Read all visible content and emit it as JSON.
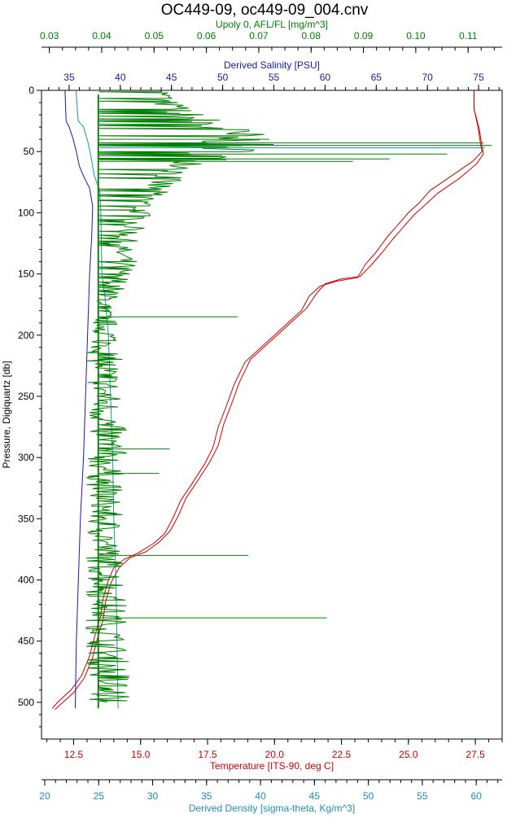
{
  "chart_data": {
    "type": "line",
    "title": "OC449-09, oc449-09_004.cnv",
    "colors": {
      "pressure": "#000000",
      "fluorescence": "#008000",
      "salinity": "#1a1aa6",
      "temperature": "#cc0000",
      "density": "#1f8fb0"
    },
    "axes": {
      "pressure": {
        "label": "Pressure, Digiquartz [db]",
        "position": "left",
        "range": [
          0,
          530
        ],
        "inverted": true,
        "ticks": [
          0,
          50,
          100,
          150,
          200,
          250,
          300,
          350,
          400,
          450,
          500
        ],
        "tick_labels": [
          "0",
          "50",
          "100",
          "150",
          "200",
          "250",
          "300",
          "350",
          "400",
          "450",
          "500"
        ]
      },
      "fluorescence": {
        "label": "Upoly 0, AFL/FL [mg/m^3]",
        "position": "top",
        "range": [
          0.0285,
          0.1165
        ],
        "ticks": [
          0.03,
          0.04,
          0.05,
          0.06,
          0.07,
          0.08,
          0.09,
          0.1,
          0.11
        ],
        "tick_labels": [
          "0.03",
          "0.04",
          "0.05",
          "0.06",
          "0.07",
          "0.08",
          "0.09",
          "0.10",
          "0.11"
        ]
      },
      "salinity": {
        "label": "Derived Salinity [PSU]",
        "position": "top",
        "range": [
          32.3,
          77.3
        ],
        "ticks": [
          35,
          40,
          45,
          50,
          55,
          60,
          65,
          70,
          75
        ],
        "tick_labels": [
          "35",
          "40",
          "45",
          "50",
          "55",
          "60",
          "65",
          "70",
          "75"
        ]
      },
      "temperature": {
        "label": "Temperature [ITS-90, deg C]",
        "position": "bottom",
        "range": [
          11.3,
          28.5
        ],
        "ticks": [
          12.5,
          15.0,
          17.5,
          20.0,
          22.5,
          25.0,
          27.5
        ],
        "tick_labels": [
          "12.5",
          "15.0",
          "17.5",
          "20.0",
          "22.5",
          "25.0",
          "27.5"
        ]
      },
      "density": {
        "label": "Derived Density [sigma-theta, Kg/m^3]",
        "position": "bottom",
        "range": [
          19.7,
          62.4
        ],
        "ticks": [
          20,
          25,
          30,
          35,
          40,
          45,
          50,
          55,
          60
        ],
        "tick_labels": [
          "20",
          "25",
          "30",
          "35",
          "40",
          "45",
          "50",
          "55",
          "60"
        ]
      }
    },
    "series": [
      {
        "key": "temperature",
        "profiles": [
          [
            [
              27.45,
              0
            ],
            [
              27.45,
              15
            ],
            [
              27.6,
              30
            ],
            [
              27.7,
              45
            ],
            [
              27.75,
              50
            ],
            [
              27.4,
              58
            ],
            [
              26.6,
              70
            ],
            [
              25.8,
              82
            ],
            [
              25.4,
              92
            ],
            [
              25.0,
              100
            ],
            [
              24.6,
              110
            ],
            [
              24.2,
              120
            ],
            [
              23.8,
              132
            ],
            [
              23.4,
              142
            ],
            [
              23.1,
              153
            ],
            [
              22.3,
              156
            ],
            [
              21.7,
              160
            ],
            [
              21.3,
              168
            ],
            [
              21.0,
              180
            ],
            [
              20.5,
              190
            ],
            [
              20.0,
              200
            ],
            [
              19.4,
              212
            ],
            [
              18.9,
              222
            ],
            [
              18.5,
              240
            ],
            [
              18.2,
              258
            ],
            [
              17.9,
              275
            ],
            [
              17.7,
              292
            ],
            [
              17.4,
              305
            ],
            [
              16.9,
              322
            ],
            [
              16.5,
              335
            ],
            [
              16.2,
              350
            ],
            [
              15.9,
              362
            ],
            [
              15.5,
              370
            ],
            [
              14.9,
              378
            ],
            [
              14.4,
              383
            ],
            [
              14.0,
              390
            ],
            [
              13.8,
              400
            ],
            [
              13.6,
              415
            ],
            [
              13.5,
              430
            ],
            [
              13.3,
              445
            ],
            [
              13.1,
              462
            ],
            [
              12.8,
              478
            ],
            [
              12.4,
              490
            ],
            [
              11.9,
              500
            ],
            [
              11.7,
              505
            ]
          ],
          [
            [
              27.45,
              0
            ],
            [
              27.45,
              15
            ],
            [
              27.65,
              32
            ],
            [
              27.75,
              46
            ],
            [
              27.8,
              52
            ],
            [
              27.55,
              60
            ],
            [
              26.9,
              72
            ],
            [
              26.1,
              84
            ],
            [
              25.6,
              94
            ],
            [
              25.2,
              102
            ],
            [
              24.8,
              112
            ],
            [
              24.4,
              122
            ],
            [
              24.0,
              133
            ],
            [
              23.6,
              143
            ],
            [
              23.2,
              152
            ],
            [
              22.5,
              154
            ],
            [
              21.9,
              158
            ],
            [
              21.6,
              165
            ],
            [
              21.2,
              178
            ],
            [
              20.7,
              188
            ],
            [
              20.2,
              198
            ],
            [
              19.6,
              210
            ],
            [
              19.1,
              220
            ],
            [
              18.7,
              238
            ],
            [
              18.4,
              256
            ],
            [
              18.1,
              273
            ],
            [
              17.9,
              290
            ],
            [
              17.6,
              303
            ],
            [
              17.1,
              320
            ],
            [
              16.7,
              333
            ],
            [
              16.4,
              348
            ],
            [
              16.1,
              360
            ],
            [
              15.7,
              369
            ],
            [
              15.2,
              377
            ],
            [
              14.6,
              382
            ],
            [
              14.2,
              390
            ],
            [
              13.9,
              402
            ],
            [
              13.7,
              417
            ],
            [
              13.6,
              432
            ],
            [
              13.4,
              447
            ],
            [
              13.2,
              464
            ],
            [
              12.9,
              480
            ],
            [
              12.5,
              492
            ],
            [
              12.0,
              502
            ],
            [
              11.8,
              506
            ]
          ]
        ]
      },
      {
        "key": "salinity",
        "profiles": [
          [
            [
              34.6,
              0
            ],
            [
              34.7,
              25
            ],
            [
              35.0,
              30
            ],
            [
              35.4,
              40
            ],
            [
              35.7,
              50
            ],
            [
              36.0,
              62
            ],
            [
              36.4,
              70
            ],
            [
              37.0,
              80
            ],
            [
              37.3,
              95
            ],
            [
              37.2,
              120
            ],
            [
              37.0,
              150
            ],
            [
              36.8,
              200
            ],
            [
              36.6,
              250
            ],
            [
              36.4,
              300
            ],
            [
              36.1,
              350
            ],
            [
              35.9,
              400
            ],
            [
              35.7,
              450
            ],
            [
              35.6,
              505
            ]
          ]
        ]
      },
      {
        "key": "density",
        "profiles": [
          [
            [
              22.9,
              0
            ],
            [
              23.1,
              25
            ],
            [
              23.6,
              30
            ],
            [
              24.0,
              42
            ],
            [
              24.3,
              55
            ],
            [
              24.6,
              70
            ],
            [
              25.1,
              82
            ],
            [
              25.2,
              100
            ],
            [
              25.3,
              150
            ],
            [
              25.6,
              170
            ],
            [
              25.9,
              200
            ],
            [
              26.1,
              250
            ],
            [
              26.3,
              300
            ],
            [
              26.4,
              350
            ],
            [
              26.6,
              400
            ],
            [
              26.7,
              450
            ],
            [
              26.8,
              505
            ]
          ]
        ]
      },
      {
        "key": "fluorescence",
        "band_main": [
          [
            0.0392,
            0.0395,
            4,
            505
          ]
        ],
        "band_upper": [
          [
            0.051,
            0.053,
            0
          ],
          [
            0.049,
            0.055,
            10
          ],
          [
            0.052,
            0.06,
            20
          ],
          [
            0.054,
            0.068,
            30
          ],
          [
            0.056,
            0.072,
            36
          ],
          [
            0.058,
            0.074,
            42
          ],
          [
            0.057,
            0.07,
            50
          ],
          [
            0.054,
            0.064,
            58
          ],
          [
            0.051,
            0.058,
            66
          ],
          [
            0.048,
            0.055,
            74
          ],
          [
            0.046,
            0.053,
            82
          ],
          [
            0.045,
            0.051,
            90
          ],
          [
            0.045,
            0.05,
            98
          ],
          [
            0.044,
            0.049,
            106
          ],
          [
            0.043,
            0.048,
            114
          ],
          [
            0.042,
            0.047,
            122
          ],
          [
            0.041,
            0.046,
            130
          ],
          [
            0.041,
            0.047,
            140
          ],
          [
            0.04,
            0.046,
            150
          ],
          [
            0.04,
            0.045,
            160
          ],
          [
            0.039,
            0.043,
            170
          ],
          [
            0.039,
            0.042,
            180
          ],
          [
            0.038,
            0.043,
            190
          ],
          [
            0.038,
            0.044,
            200
          ],
          [
            0.037,
            0.044,
            220
          ],
          [
            0.037,
            0.044,
            240
          ],
          [
            0.037,
            0.044,
            260
          ],
          [
            0.037,
            0.045,
            280
          ],
          [
            0.037,
            0.045,
            300
          ],
          [
            0.037,
            0.044,
            320
          ],
          [
            0.037,
            0.044,
            340
          ],
          [
            0.037,
            0.044,
            360
          ],
          [
            0.037,
            0.044,
            380
          ],
          [
            0.037,
            0.045,
            400
          ],
          [
            0.037,
            0.045,
            420
          ],
          [
            0.037,
            0.045,
            440
          ],
          [
            0.037,
            0.045,
            460
          ],
          [
            0.037,
            0.046,
            480
          ],
          [
            0.037,
            0.046,
            500
          ]
        ],
        "spikes": [
          [
            0.1145,
            45
          ],
          [
            0.113,
            43
          ],
          [
            0.106,
            52
          ],
          [
            0.095,
            56
          ],
          [
            0.088,
            58
          ],
          [
            0.072,
            40
          ],
          [
            0.066,
            185
          ],
          [
            0.068,
            380
          ],
          [
            0.083,
            431
          ],
          [
            0.053,
            293
          ],
          [
            0.051,
            313
          ]
        ]
      }
    ]
  }
}
